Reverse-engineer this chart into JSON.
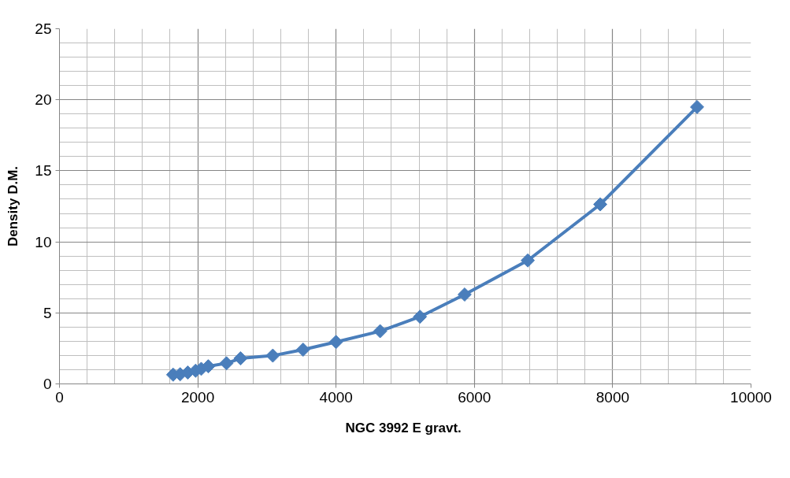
{
  "chart_data": {
    "type": "line",
    "xlabel": "NGC 3992  E gravt.",
    "ylabel": "Density D.M.",
    "x": [
      1644,
      1745,
      1855,
      1969,
      2050,
      2152,
      2415,
      2618,
      3085,
      3523,
      3999,
      4637,
      5213,
      5859,
      6772,
      7820,
      9220
    ],
    "series": [
      {
        "color": "#4a7ebb",
        "values": [
          0.65,
          0.68,
          0.8,
          0.93,
          1.06,
          1.24,
          1.45,
          1.8,
          1.99,
          2.41,
          2.95,
          3.71,
          4.73,
          6.29,
          8.69,
          12.64,
          19.49
        ]
      }
    ],
    "xlim": [
      0,
      10000
    ],
    "xticks": [
      0,
      2000,
      4000,
      6000,
      8000,
      10000
    ],
    "ylim": [
      0,
      25
    ],
    "yticks": [
      0,
      5,
      10,
      15,
      20,
      25
    ],
    "grid": true,
    "marker": "diamond",
    "line_style": "solid"
  }
}
